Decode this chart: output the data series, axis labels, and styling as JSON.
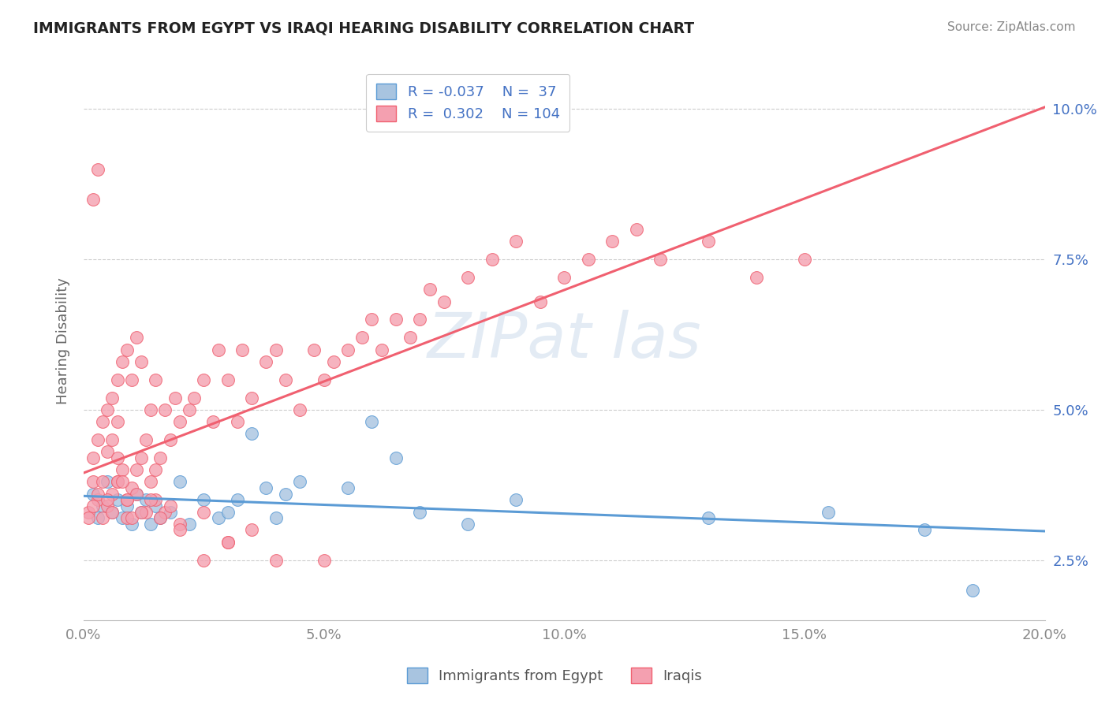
{
  "title": "IMMIGRANTS FROM EGYPT VS IRAQI HEARING DISABILITY CORRELATION CHART",
  "source": "Source: ZipAtlas.com",
  "ylabel": "Hearing Disability",
  "yticks": [
    0.025,
    0.05,
    0.075,
    0.1
  ],
  "ytick_labels": [
    "2.5%",
    "5.0%",
    "7.5%",
    "10.0%"
  ],
  "xlim": [
    0.0,
    0.2
  ],
  "ylim": [
    0.015,
    0.108
  ],
  "color_egypt": "#a8c4e0",
  "color_iraq": "#f4a0b0",
  "color_egypt_line": "#5b9bd5",
  "color_iraq_line": "#f06070",
  "color_text_blue": "#4472c4",
  "background": "#ffffff",
  "grid_color": "#cccccc",
  "egypt_x": [
    0.002,
    0.003,
    0.004,
    0.005,
    0.006,
    0.007,
    0.008,
    0.009,
    0.01,
    0.011,
    0.012,
    0.013,
    0.014,
    0.015,
    0.016,
    0.018,
    0.02,
    0.022,
    0.025,
    0.028,
    0.03,
    0.032,
    0.035,
    0.038,
    0.04,
    0.042,
    0.045,
    0.055,
    0.06,
    0.065,
    0.07,
    0.08,
    0.09,
    0.13,
    0.155,
    0.175,
    0.185
  ],
  "egypt_y": [
    0.036,
    0.032,
    0.034,
    0.038,
    0.033,
    0.035,
    0.032,
    0.034,
    0.031,
    0.036,
    0.033,
    0.035,
    0.031,
    0.034,
    0.032,
    0.033,
    0.038,
    0.031,
    0.035,
    0.032,
    0.033,
    0.035,
    0.046,
    0.037,
    0.032,
    0.036,
    0.038,
    0.037,
    0.048,
    0.042,
    0.033,
    0.031,
    0.035,
    0.032,
    0.033,
    0.03,
    0.02
  ],
  "iraq_x": [
    0.001,
    0.002,
    0.002,
    0.003,
    0.003,
    0.004,
    0.004,
    0.005,
    0.005,
    0.006,
    0.006,
    0.007,
    0.007,
    0.008,
    0.008,
    0.009,
    0.009,
    0.01,
    0.01,
    0.011,
    0.011,
    0.012,
    0.012,
    0.013,
    0.014,
    0.014,
    0.015,
    0.015,
    0.016,
    0.017,
    0.018,
    0.019,
    0.02,
    0.022,
    0.023,
    0.025,
    0.027,
    0.028,
    0.03,
    0.032,
    0.033,
    0.035,
    0.038,
    0.04,
    0.042,
    0.045,
    0.048,
    0.05,
    0.052,
    0.055,
    0.058,
    0.06,
    0.062,
    0.065,
    0.068,
    0.07,
    0.072,
    0.075,
    0.08,
    0.085,
    0.09,
    0.095,
    0.1,
    0.105,
    0.11,
    0.115,
    0.12,
    0.13,
    0.14,
    0.15,
    0.002,
    0.003,
    0.005,
    0.007,
    0.009,
    0.011,
    0.013,
    0.015,
    0.017,
    0.02,
    0.025,
    0.03,
    0.04,
    0.05,
    0.001,
    0.002,
    0.003,
    0.004,
    0.005,
    0.006,
    0.006,
    0.007,
    0.007,
    0.008,
    0.009,
    0.01,
    0.012,
    0.014,
    0.016,
    0.018,
    0.02,
    0.025,
    0.03,
    0.035
  ],
  "iraq_y": [
    0.033,
    0.038,
    0.042,
    0.035,
    0.045,
    0.032,
    0.048,
    0.034,
    0.05,
    0.036,
    0.052,
    0.038,
    0.055,
    0.04,
    0.058,
    0.035,
    0.06,
    0.037,
    0.055,
    0.04,
    0.062,
    0.042,
    0.058,
    0.045,
    0.038,
    0.05,
    0.04,
    0.055,
    0.042,
    0.05,
    0.045,
    0.052,
    0.048,
    0.05,
    0.052,
    0.055,
    0.048,
    0.06,
    0.055,
    0.048,
    0.06,
    0.052,
    0.058,
    0.06,
    0.055,
    0.05,
    0.06,
    0.055,
    0.058,
    0.06,
    0.062,
    0.065,
    0.06,
    0.065,
    0.062,
    0.065,
    0.07,
    0.068,
    0.072,
    0.075,
    0.078,
    0.068,
    0.072,
    0.075,
    0.078,
    0.08,
    0.075,
    0.078,
    0.072,
    0.075,
    0.085,
    0.09,
    0.043,
    0.038,
    0.032,
    0.036,
    0.033,
    0.035,
    0.033,
    0.031,
    0.033,
    0.028,
    0.025,
    0.025,
    0.032,
    0.034,
    0.036,
    0.038,
    0.035,
    0.033,
    0.045,
    0.042,
    0.048,
    0.038,
    0.035,
    0.032,
    0.033,
    0.035,
    0.032,
    0.034,
    0.03,
    0.025,
    0.028,
    0.03
  ]
}
